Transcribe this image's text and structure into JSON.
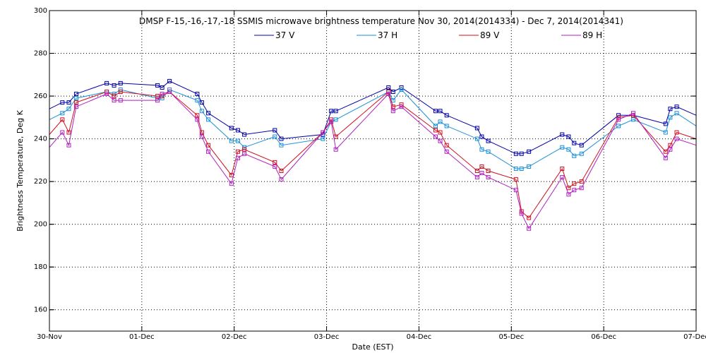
{
  "chart_data": {
    "type": "line",
    "title": "DMSP F-15,-16,-17,-18 SSMIS microwave brightness temperature Nov 30, 2014(2014334) - Dec  7, 2014(2014341)",
    "xlabel": "Date (EST)",
    "ylabel": "Brightness Temperature, Deg K",
    "xlim": [
      0,
      7
    ],
    "ylim": [
      150,
      300
    ],
    "x_ticks": [
      {
        "value": 0,
        "label": "30-Nov"
      },
      {
        "value": 1,
        "label": "01-Dec"
      },
      {
        "value": 2,
        "label": "02-Dec"
      },
      {
        "value": 3,
        "label": "03-Dec"
      },
      {
        "value": 4,
        "label": "04-Dec"
      },
      {
        "value": 5,
        "label": "05-Dec"
      },
      {
        "value": 6,
        "label": "06-Dec"
      },
      {
        "value": 7,
        "label": "07-Dec"
      }
    ],
    "y_ticks": [
      {
        "value": 160,
        "label": "160"
      },
      {
        "value": 180,
        "label": "180"
      },
      {
        "value": 200,
        "label": "200"
      },
      {
        "value": 220,
        "label": "220"
      },
      {
        "value": 240,
        "label": "240"
      },
      {
        "value": 260,
        "label": "260"
      },
      {
        "value": 280,
        "label": "280"
      },
      {
        "value": 300,
        "label": "300"
      }
    ],
    "grid": true,
    "legend": "top-center",
    "series": [
      {
        "name": "37 V",
        "color": "#0000a8",
        "x": [
          0.0,
          0.14,
          0.21,
          0.29,
          0.62,
          0.7,
          0.77,
          1.17,
          1.22,
          1.3,
          1.6,
          1.65,
          1.72,
          1.97,
          2.04,
          2.11,
          2.44,
          2.51,
          2.96,
          3.05,
          3.1,
          3.67,
          3.72,
          3.81,
          4.18,
          4.23,
          4.3,
          4.63,
          4.68,
          4.75,
          5.05,
          5.11,
          5.19,
          5.55,
          5.62,
          5.68,
          5.76,
          6.16,
          6.32,
          6.67,
          6.72,
          6.79,
          7.0
        ],
        "y": [
          254,
          257,
          257,
          261,
          266,
          265,
          266,
          265,
          264,
          267,
          261,
          257,
          252,
          245,
          244,
          242,
          244,
          240,
          242,
          253,
          253,
          264,
          262,
          264,
          253,
          253,
          251,
          245,
          241,
          239,
          233,
          233,
          234,
          242,
          241,
          238,
          237,
          251,
          251,
          247,
          254,
          255,
          251
        ]
      },
      {
        "name": "37 H",
        "color": "#1a90d8",
        "x": [
          0.0,
          0.14,
          0.21,
          0.29,
          0.62,
          0.7,
          0.77,
          1.17,
          1.22,
          1.3,
          1.6,
          1.65,
          1.72,
          1.97,
          2.04,
          2.11,
          2.44,
          2.51,
          2.96,
          3.05,
          3.1,
          3.67,
          3.72,
          3.81,
          4.18,
          4.23,
          4.3,
          4.63,
          4.68,
          4.75,
          5.05,
          5.11,
          5.19,
          5.55,
          5.62,
          5.68,
          5.76,
          6.16,
          6.32,
          6.67,
          6.72,
          6.79,
          7.0
        ],
        "y": [
          249,
          252,
          254,
          259,
          262,
          261,
          263,
          259,
          259,
          263,
          258,
          253,
          249,
          239,
          239,
          236,
          241,
          237,
          240,
          248,
          249,
          262,
          258,
          263,
          246,
          248,
          246,
          240,
          235,
          234,
          226,
          226,
          227,
          236,
          235,
          232,
          233,
          246,
          249,
          243,
          250,
          252,
          246
        ]
      },
      {
        "name": "89 V",
        "color": "#d01020",
        "x": [
          0.0,
          0.14,
          0.21,
          0.29,
          0.62,
          0.7,
          0.77,
          1.17,
          1.22,
          1.3,
          1.6,
          1.65,
          1.72,
          1.97,
          2.04,
          2.11,
          2.44,
          2.51,
          2.96,
          3.05,
          3.1,
          3.67,
          3.72,
          3.81,
          4.18,
          4.23,
          4.3,
          4.63,
          4.68,
          4.75,
          5.05,
          5.11,
          5.19,
          5.55,
          5.62,
          5.68,
          5.76,
          6.16,
          6.32,
          6.67,
          6.72,
          6.79,
          7.0
        ],
        "y": [
          242,
          249,
          243,
          257,
          262,
          260,
          262,
          260,
          260,
          262,
          251,
          243,
          237,
          223,
          234,
          235,
          229,
          225,
          243,
          249,
          241,
          262,
          255,
          256,
          244,
          243,
          237,
          225,
          227,
          225,
          221,
          206,
          203,
          226,
          217,
          219,
          220,
          250,
          251,
          234,
          237,
          243,
          240
        ]
      },
      {
        "name": "89 H",
        "color": "#b020c0",
        "x": [
          0.0,
          0.14,
          0.21,
          0.29,
          0.62,
          0.7,
          0.77,
          1.17,
          1.22,
          1.3,
          1.6,
          1.65,
          1.72,
          1.97,
          2.04,
          2.11,
          2.44,
          2.51,
          2.96,
          3.05,
          3.1,
          3.67,
          3.72,
          3.81,
          4.18,
          4.23,
          4.3,
          4.63,
          4.68,
          4.75,
          5.05,
          5.11,
          5.19,
          5.55,
          5.62,
          5.68,
          5.76,
          6.16,
          6.32,
          6.67,
          6.72,
          6.79,
          7.0
        ],
        "y": [
          236,
          243,
          237,
          255,
          261,
          258,
          258,
          258,
          261,
          262,
          249,
          241,
          234,
          219,
          231,
          233,
          227,
          221,
          243,
          248,
          235,
          261,
          253,
          255,
          241,
          239,
          234,
          222,
          224,
          222,
          216,
          205,
          198,
          222,
          214,
          216,
          217,
          249,
          252,
          231,
          235,
          240,
          237
        ]
      }
    ]
  }
}
